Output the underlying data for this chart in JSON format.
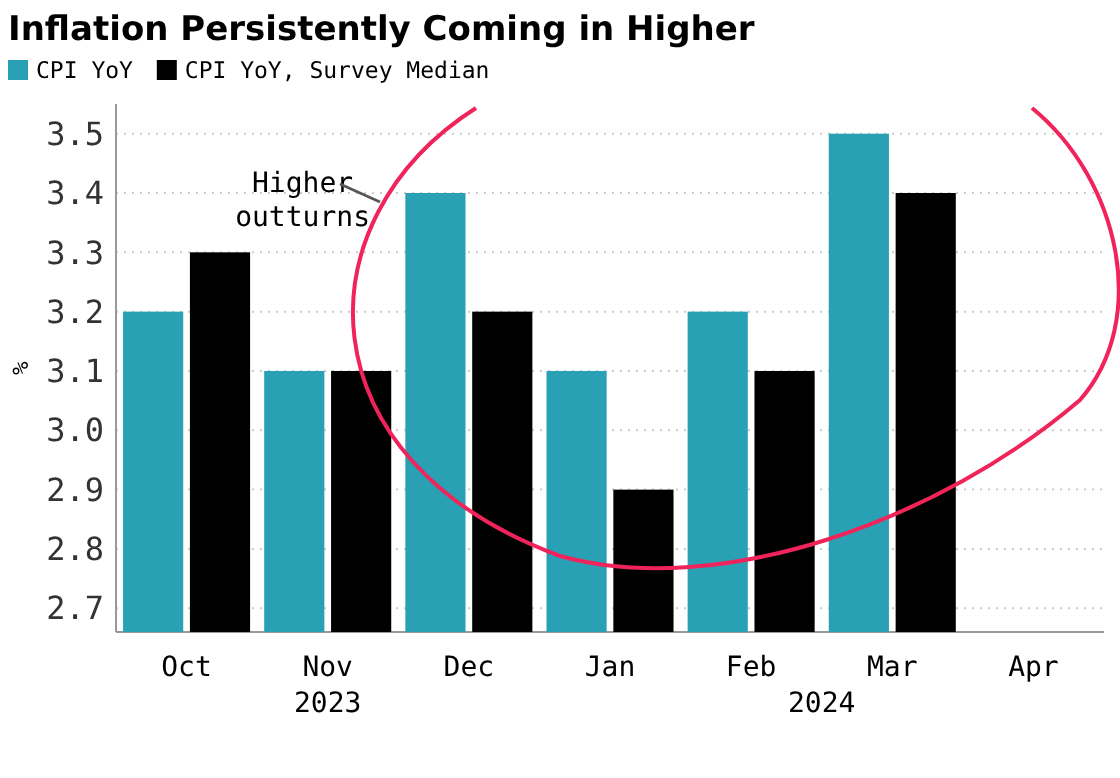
{
  "chart_data": {
    "type": "bar",
    "title": "Inflation Persistently Coming in Higher",
    "ylabel": "%",
    "categories": [
      "Oct",
      "Nov",
      "Dec",
      "Jan",
      "Feb",
      "Mar",
      "Apr"
    ],
    "series": [
      {
        "name": "CPI YoY",
        "color": "#2aa0b5",
        "values": [
          3.2,
          3.1,
          3.4,
          3.1,
          3.2,
          3.5,
          null
        ]
      },
      {
        "name": "CPI YoY, Survey Median",
        "color": "#000000",
        "values": [
          3.3,
          3.1,
          3.2,
          2.9,
          3.1,
          3.4,
          null
        ]
      }
    ],
    "ylim": [
      2.66,
      3.55
    ],
    "yticks": [
      {
        "value": 2.7,
        "label": "2.7"
      },
      {
        "value": 2.8,
        "label": "2.8"
      },
      {
        "value": 2.9,
        "label": "2.9"
      },
      {
        "value": 3.0,
        "label": "3.0"
      },
      {
        "value": 3.1,
        "label": "3.1"
      },
      {
        "value": 3.2,
        "label": "3.2"
      },
      {
        "value": 3.3,
        "label": "3.3"
      },
      {
        "value": 3.4,
        "label": "3.4"
      },
      {
        "value": 3.5,
        "label": "3.5"
      }
    ],
    "grid": "y",
    "legend": "top left",
    "annotations": [
      "Higher outturns",
      "2023",
      "2024"
    ]
  }
}
